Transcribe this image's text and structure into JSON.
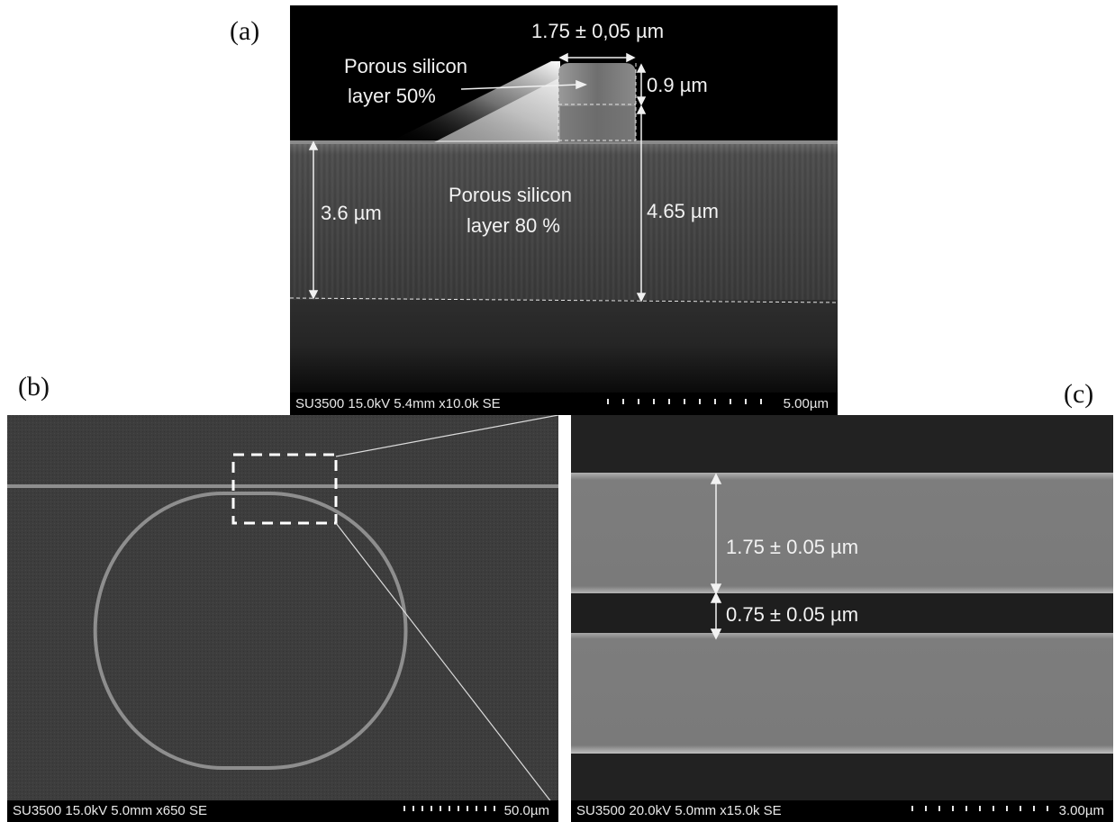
{
  "panels": {
    "a": {
      "letter": "(a)",
      "top_width": "1.75 ± 0,05  µm",
      "top_height": "0.9 µm",
      "porous_50_line1": "Porous silicon",
      "porous_50_line2": "layer 50%",
      "left_height": "3.6 µm",
      "porous_80_line1": "Porous silicon",
      "porous_80_line2": "layer 80 %",
      "right_height": "4.65 µm",
      "footer_meta": "SU3500 15.0kV 5.4mm x10.0k SE",
      "footer_scale": "5.00µm"
    },
    "b": {
      "letter": "(b)",
      "footer_meta": "SU3500 15.0kV 5.0mm x650 SE",
      "footer_scale": "50.0µm"
    },
    "c": {
      "letter": "(c)",
      "waveguide_width": "1.75 ± 0.05 µm",
      "gap_width": "0.75 ± 0.05 µm",
      "footer_meta": "SU3500 20.0kV 5.0mm x15.0k SE",
      "footer_scale": "3.00µm"
    }
  }
}
